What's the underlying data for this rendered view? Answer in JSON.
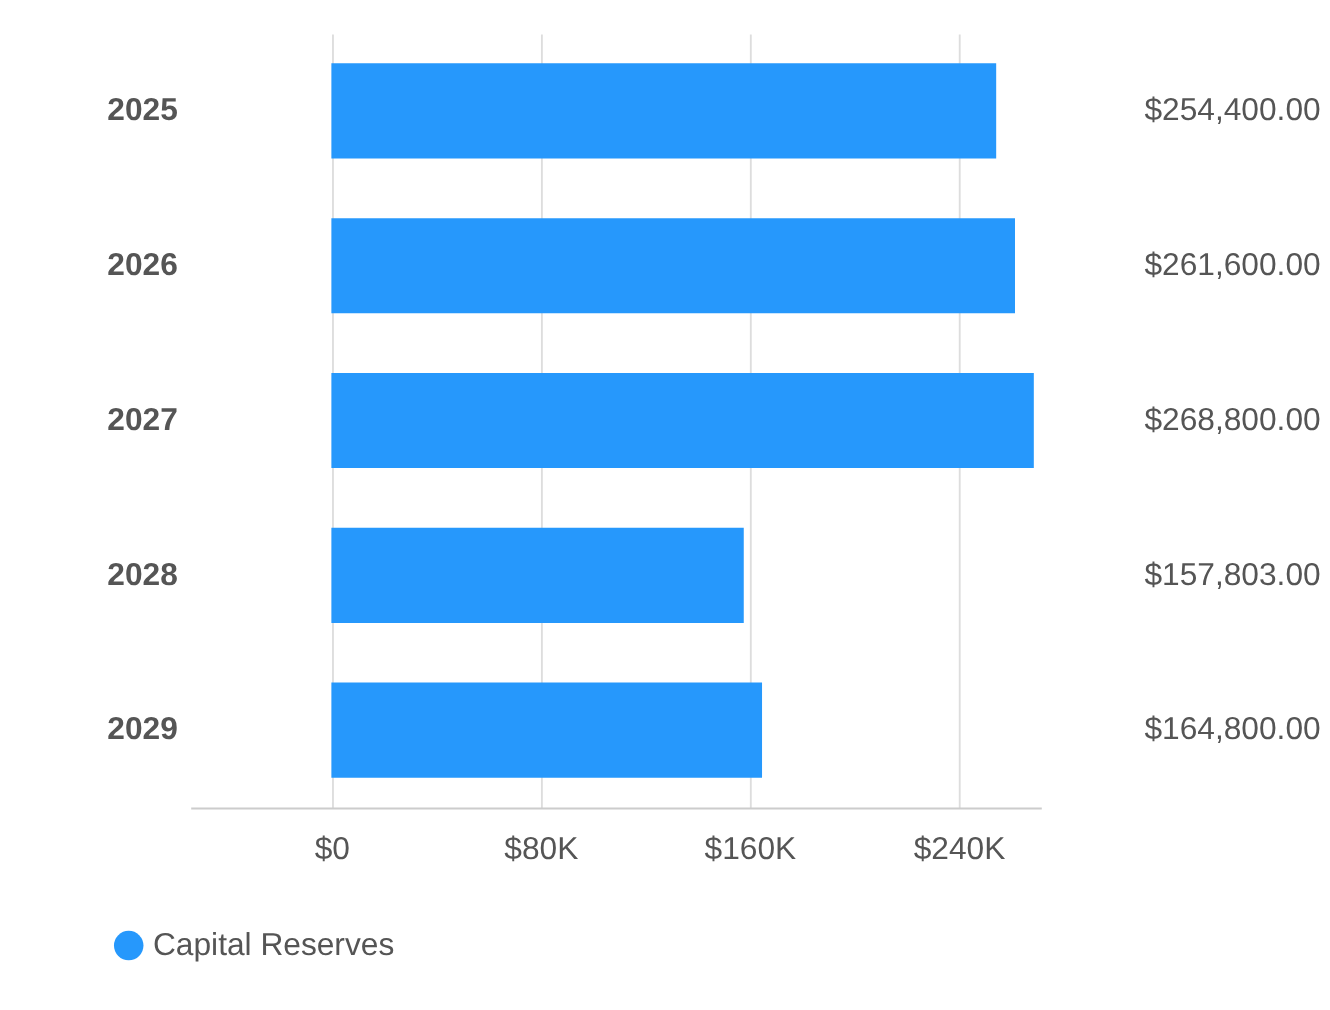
{
  "chart_data": {
    "type": "bar",
    "orientation": "horizontal",
    "categories": [
      "2025",
      "2026",
      "2027",
      "2028",
      "2029"
    ],
    "series": [
      {
        "name": "Capital Reserves",
        "color": "#2698fc",
        "values": [
          254400,
          261600,
          268800,
          157803,
          164800
        ],
        "value_labels": [
          "$254,400.00",
          "$261,600.00",
          "$268,800.00",
          "$157,803.00",
          "$164,800.00"
        ]
      }
    ],
    "xlim": [
      -54000,
      271500
    ],
    "xticks": [
      {
        "value": 0,
        "label": "$0"
      },
      {
        "value": 80000,
        "label": "$80K"
      },
      {
        "value": 160000,
        "label": "$160K"
      },
      {
        "value": 240000,
        "label": "$240K"
      }
    ],
    "grid": "x",
    "legend": "bottom left"
  }
}
